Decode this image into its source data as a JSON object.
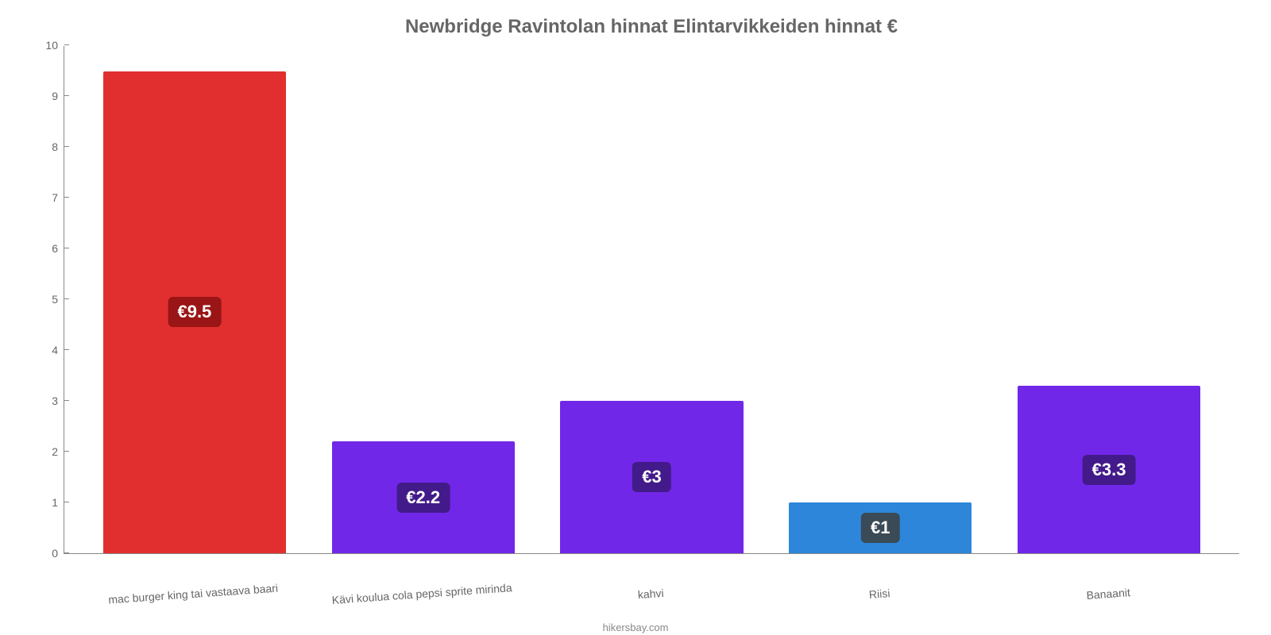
{
  "chart": {
    "type": "bar",
    "title": "Newbridge Ravintolan hinnat Elintarvikkeiden hinnat €",
    "title_color": "#666666",
    "title_fontsize": 24,
    "background_color": "#ffffff",
    "axis_color": "#888888",
    "label_color": "#666666",
    "label_fontsize": 14,
    "ylim": [
      0,
      10
    ],
    "ytick_step": 1,
    "yticks": [
      "0",
      "1",
      "2",
      "3",
      "4",
      "5",
      "6",
      "7",
      "8",
      "9",
      "10"
    ],
    "bar_width_pct": 80,
    "value_label_fontsize": 22,
    "categories": [
      "mac burger king tai vastaava baari",
      "Kävi koulua cola pepsi sprite mirinda",
      "kahvi",
      "Riisi",
      "Banaanit"
    ],
    "values": [
      9.5,
      2.2,
      3,
      1,
      3.3
    ],
    "value_labels": [
      "€9.5",
      "€2.2",
      "€3",
      "€1",
      "€3.3"
    ],
    "bar_colors": [
      "#e12f2f",
      "#7127e8",
      "#7127e8",
      "#2d86d9",
      "#7127e8"
    ],
    "value_label_bg": [
      "#9a1515",
      "#431a8a",
      "#431a8a",
      "#3a4a56",
      "#431a8a"
    ],
    "attribution": "hikersbay.com"
  }
}
